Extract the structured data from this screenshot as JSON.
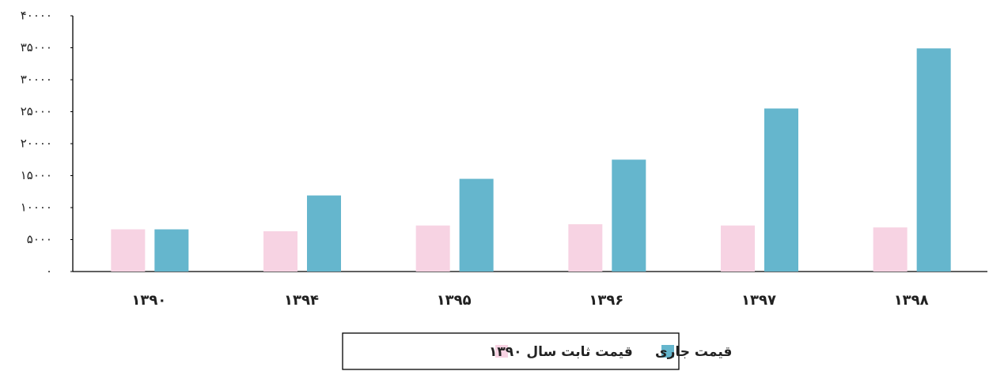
{
  "chart_data": {
    "type": "bar",
    "categories": [
      "۱۳۹۰",
      "۱۳۹۴",
      "۱۳۹۵",
      "۱۳۹۶",
      "۱۳۹۷",
      "۱۳۹۸"
    ],
    "series": [
      {
        "name": "قیمت ثابت سال ۱۳۹۰",
        "color": "#f7d3e3",
        "values": [
          6600,
          6300,
          7200,
          7400,
          7200,
          6900
        ]
      },
      {
        "name": "قیمت جاری",
        "color": "#65b6cd",
        "values": [
          6600,
          11900,
          14500,
          17500,
          25500,
          34900
        ]
      }
    ],
    "ylim": [
      0,
      40000
    ],
    "yticks": [
      {
        "value": 0,
        "label": "۰"
      },
      {
        "value": 5000,
        "label": "۵۰۰۰"
      },
      {
        "value": 10000,
        "label": "۱۰۰۰۰"
      },
      {
        "value": 15000,
        "label": "۱۵۰۰۰"
      },
      {
        "value": 20000,
        "label": "۲۰۰۰۰"
      },
      {
        "value": 25000,
        "label": "۲۵۰۰۰"
      },
      {
        "value": 30000,
        "label": "۳۰۰۰۰"
      },
      {
        "value": 35000,
        "label": "۳۵۰۰۰"
      },
      {
        "value": 40000,
        "label": "۴۰۰۰۰"
      }
    ],
    "grid": false
  }
}
